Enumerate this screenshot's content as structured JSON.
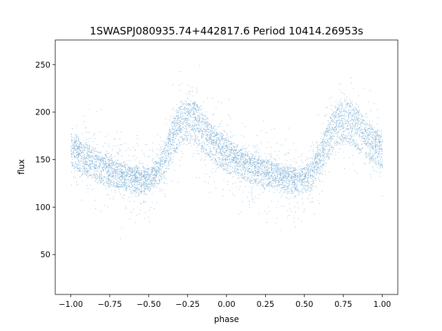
{
  "chart_data": {
    "type": "scatter",
    "title": "1SWASPJ080935.74+442817.6 Period 10414.26953s",
    "xlabel": "phase",
    "ylabel": "flux",
    "xlim": [
      -1.1,
      1.1
    ],
    "ylim": [
      8,
      276
    ],
    "x_ticks": [
      -1.0,
      -0.75,
      -0.5,
      -0.25,
      0.0,
      0.25,
      0.5,
      0.75,
      1.0
    ],
    "x_tick_labels": [
      "−1.00",
      "−0.75",
      "−0.50",
      "−0.25",
      "0.00",
      "0.25",
      "0.50",
      "0.75",
      "1.00"
    ],
    "y_ticks": [
      50,
      100,
      150,
      200,
      250
    ],
    "y_tick_labels": [
      "50",
      "100",
      "150",
      "200",
      "250"
    ],
    "grid": false,
    "point_color": "#4a90c4",
    "series": [
      {
        "values_description_omitted": true,
        "points": [
          [
            -1.0,
            160
          ],
          [
            -0.95,
            155
          ],
          [
            -0.9,
            150
          ],
          [
            -0.85,
            145
          ],
          [
            -0.8,
            141
          ],
          [
            -0.75,
            138
          ],
          [
            -0.7,
            135
          ],
          [
            -0.65,
            132
          ],
          [
            -0.6,
            130
          ],
          [
            -0.55,
            128
          ],
          [
            -0.5,
            129
          ],
          [
            -0.45,
            136
          ],
          [
            -0.4,
            150
          ],
          [
            -0.35,
            172
          ],
          [
            -0.3,
            188
          ],
          [
            -0.25,
            193
          ],
          [
            -0.2,
            190
          ],
          [
            -0.15,
            180
          ],
          [
            -0.1,
            170
          ],
          [
            -0.05,
            162
          ],
          [
            0.0,
            156
          ],
          [
            0.05,
            151
          ],
          [
            0.1,
            146
          ],
          [
            0.15,
            142
          ],
          [
            0.2,
            139
          ],
          [
            0.25,
            136
          ],
          [
            0.3,
            134
          ],
          [
            0.35,
            131
          ],
          [
            0.4,
            129
          ],
          [
            0.45,
            128
          ],
          [
            0.5,
            130
          ],
          [
            0.55,
            137
          ],
          [
            0.6,
            151
          ],
          [
            0.65,
            172
          ],
          [
            0.7,
            187
          ],
          [
            0.75,
            192
          ],
          [
            0.8,
            190
          ],
          [
            0.85,
            181
          ],
          [
            0.9,
            172
          ],
          [
            0.95,
            165
          ],
          [
            1.0,
            160
          ]
        ]
      }
    ]
  }
}
